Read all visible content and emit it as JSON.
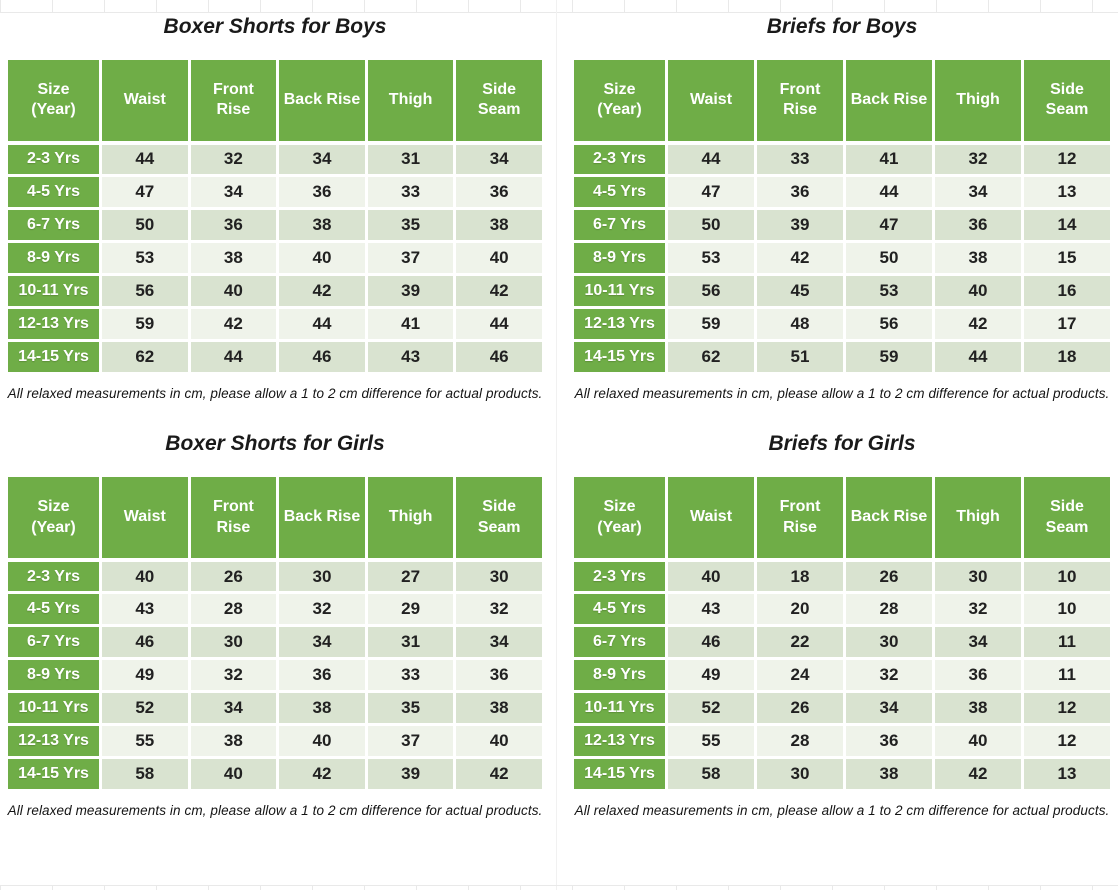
{
  "colors": {
    "header_green": "#6fad47",
    "row_band_dark": "#d9e3d0",
    "row_band_light": "#eff3ea",
    "value_text": "#212121",
    "gridline": "#e9e9e9"
  },
  "footnote": "All relaxed measurements in cm, please allow a 1 to 2 cm difference for actual products.",
  "columns": [
    {
      "label": "Size (Year)",
      "two_line": true
    },
    {
      "label": "Waist",
      "two_line": false
    },
    {
      "label": "Front Rise",
      "two_line": true
    },
    {
      "label": "Back Rise",
      "two_line": false
    },
    {
      "label": "Thigh",
      "two_line": false
    },
    {
      "label": "Side Seam",
      "two_line": true
    }
  ],
  "tables": [
    {
      "title": "Boxer Shorts for Boys",
      "rows": [
        [
          "2-3 Yrs",
          44,
          32,
          34,
          31,
          34
        ],
        [
          "4-5 Yrs",
          47,
          34,
          36,
          33,
          36
        ],
        [
          "6-7 Yrs",
          50,
          36,
          38,
          35,
          38
        ],
        [
          "8-9 Yrs",
          53,
          38,
          40,
          37,
          40
        ],
        [
          "10-11 Yrs",
          56,
          40,
          42,
          39,
          42
        ],
        [
          "12-13 Yrs",
          59,
          42,
          44,
          41,
          44
        ],
        [
          "14-15 Yrs",
          62,
          44,
          46,
          43,
          46
        ]
      ]
    },
    {
      "title": "Briefs for Boys",
      "rows": [
        [
          "2-3 Yrs",
          44,
          33,
          41,
          32,
          12
        ],
        [
          "4-5 Yrs",
          47,
          36,
          44,
          34,
          13
        ],
        [
          "6-7 Yrs",
          50,
          39,
          47,
          36,
          14
        ],
        [
          "8-9 Yrs",
          53,
          42,
          50,
          38,
          15
        ],
        [
          "10-11 Yrs",
          56,
          45,
          53,
          40,
          16
        ],
        [
          "12-13 Yrs",
          59,
          48,
          56,
          42,
          17
        ],
        [
          "14-15 Yrs",
          62,
          51,
          59,
          44,
          18
        ]
      ]
    },
    {
      "title": "Boxer Shorts for Girls",
      "rows": [
        [
          "2-3 Yrs",
          40,
          26,
          30,
          27,
          30
        ],
        [
          "4-5 Yrs",
          43,
          28,
          32,
          29,
          32
        ],
        [
          "6-7 Yrs",
          46,
          30,
          34,
          31,
          34
        ],
        [
          "8-9 Yrs",
          49,
          32,
          36,
          33,
          36
        ],
        [
          "10-11 Yrs",
          52,
          34,
          38,
          35,
          38
        ],
        [
          "12-13 Yrs",
          55,
          38,
          40,
          37,
          40
        ],
        [
          "14-15 Yrs",
          58,
          40,
          42,
          39,
          42
        ]
      ]
    },
    {
      "title": "Briefs for Girls",
      "rows": [
        [
          "2-3 Yrs",
          40,
          18,
          26,
          30,
          10
        ],
        [
          "4-5 Yrs",
          43,
          20,
          28,
          32,
          10
        ],
        [
          "6-7 Yrs",
          46,
          22,
          30,
          34,
          11
        ],
        [
          "8-9 Yrs",
          49,
          24,
          32,
          36,
          11
        ],
        [
          "10-11 Yrs",
          52,
          26,
          34,
          38,
          12
        ],
        [
          "12-13 Yrs",
          55,
          28,
          36,
          40,
          12
        ],
        [
          "14-15 Yrs",
          58,
          30,
          38,
          42,
          13
        ]
      ]
    }
  ]
}
